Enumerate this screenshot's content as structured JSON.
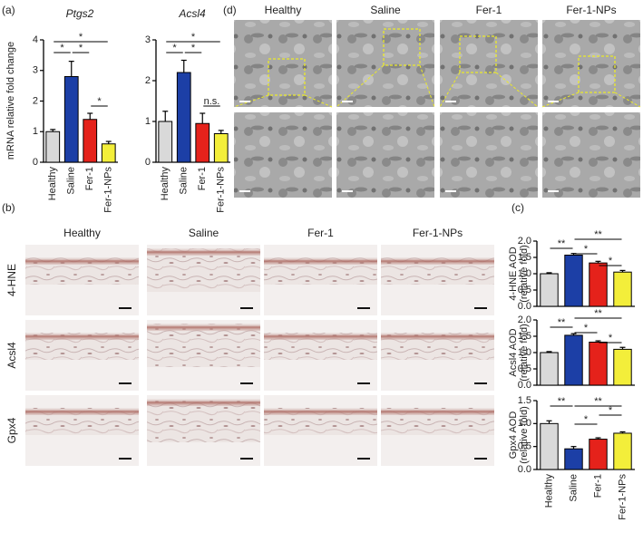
{
  "panel_labels": [
    "(a)",
    "(b)",
    "(c)",
    "(d)"
  ],
  "micrographs_d": {
    "columns": [
      "Healthy",
      "Saline",
      "Fer-1",
      "Fer-1-NPs"
    ]
  },
  "micrographs_b": {
    "columns": [
      "Healthy",
      "Saline",
      "Fer-1",
      "Fer-1-NPs"
    ],
    "rows": [
      "4-HNE",
      "Acsl4",
      "Gpx4"
    ]
  },
  "chart_data": [
    {
      "type": "bar",
      "title": "Ptgs2",
      "ylabel": "mRNA relative fold change",
      "categories": [
        "Healthy",
        "Saline",
        "Fer-1",
        "Fer-1-NPs"
      ],
      "values": [
        1.0,
        2.8,
        1.4,
        0.6
      ],
      "errors": [
        0.07,
        0.5,
        0.2,
        0.08
      ],
      "colors": [
        "#d9d9d9",
        "#1c3fa6",
        "#e5221b",
        "#f3ee3a"
      ],
      "ylim": [
        0,
        4
      ],
      "yticks": [
        0,
        1,
        2,
        3,
        4
      ],
      "annotations": [
        {
          "text": "*",
          "between": [
            0,
            1
          ]
        },
        {
          "text": "*",
          "between": [
            1,
            2
          ]
        },
        {
          "text": "*",
          "between": [
            0,
            3
          ]
        },
        {
          "text": "*",
          "between": [
            2,
            3
          ]
        }
      ]
    },
    {
      "type": "bar",
      "title": "Acsl4",
      "categories": [
        "Healthy",
        "Saline",
        "Fer-1",
        "Fer-1-NPs"
      ],
      "values": [
        1.0,
        2.2,
        0.95,
        0.7
      ],
      "errors": [
        0.25,
        0.3,
        0.25,
        0.08
      ],
      "colors": [
        "#d9d9d9",
        "#1c3fa6",
        "#e5221b",
        "#f3ee3a"
      ],
      "ylim": [
        0,
        3
      ],
      "yticks": [
        0,
        1,
        2,
        3
      ],
      "annotations": [
        {
          "text": "*",
          "between": [
            0,
            1
          ]
        },
        {
          "text": "*",
          "between": [
            1,
            2
          ]
        },
        {
          "text": "*",
          "between": [
            0,
            3
          ]
        },
        {
          "text": "n.s.",
          "between": [
            2,
            3
          ]
        }
      ]
    },
    {
      "type": "bar",
      "ylabel": [
        "4-HNE AOD",
        "(relative fold)"
      ],
      "categories": [
        null,
        null,
        null,
        null
      ],
      "values": [
        1.0,
        1.57,
        1.33,
        1.05
      ],
      "errors": [
        0.03,
        0.05,
        0.05,
        0.05
      ],
      "colors": [
        "#d9d9d9",
        "#1c3fa6",
        "#e5221b",
        "#f3ee3a"
      ],
      "ylim": [
        0,
        2
      ],
      "yticks": [
        {
          "value": 0,
          "label": "0.0"
        },
        0.5,
        {
          "value": 1,
          "label": "1.0"
        },
        1.5,
        {
          "value": 2,
          "label": "2.0"
        }
      ],
      "annotations": [
        {
          "text": "**",
          "between": [
            0,
            1
          ]
        },
        {
          "text": "**",
          "between": [
            1,
            3
          ]
        },
        {
          "text": "*",
          "between": [
            1,
            2
          ]
        },
        {
          "text": "*",
          "between": [
            2,
            3
          ]
        }
      ]
    },
    {
      "type": "bar",
      "ylabel": [
        "Acsl4 AOD",
        "(relative fold)"
      ],
      "categories": [
        null,
        null,
        null,
        null
      ],
      "values": [
        1.0,
        1.53,
        1.32,
        1.1
      ],
      "errors": [
        0.03,
        0.05,
        0.04,
        0.06
      ],
      "colors": [
        "#d9d9d9",
        "#1c3fa6",
        "#e5221b",
        "#f3ee3a"
      ],
      "ylim": [
        0,
        2
      ],
      "yticks": [
        {
          "value": 0,
          "label": "0.0"
        },
        0.5,
        {
          "value": 1,
          "label": "1.0"
        },
        1.5,
        {
          "value": 2,
          "label": "2.0"
        }
      ],
      "annotations": [
        {
          "text": "**",
          "between": [
            0,
            1
          ]
        },
        {
          "text": "**",
          "between": [
            1,
            3
          ]
        },
        {
          "text": "*",
          "between": [
            1,
            2
          ]
        },
        {
          "text": "*",
          "between": [
            2,
            3
          ]
        }
      ]
    },
    {
      "type": "bar",
      "ylabel": [
        "Gpx4 AOD",
        "(relative fold)"
      ],
      "categories": [
        "Healthy",
        "Saline",
        "Fer-1",
        "Fer-1-NPs"
      ],
      "values": [
        1.0,
        0.45,
        0.66,
        0.79
      ],
      "errors": [
        0.06,
        0.05,
        0.03,
        0.03
      ],
      "colors": [
        "#d9d9d9",
        "#1c3fa6",
        "#e5221b",
        "#f3ee3a"
      ],
      "ylim": [
        0,
        1.5
      ],
      "yticks": [
        {
          "value": 0,
          "label": "0.0"
        },
        0.5,
        {
          "value": 1,
          "label": "1.0"
        },
        1.5
      ],
      "annotations": [
        {
          "text": "**",
          "between": [
            0,
            1
          ]
        },
        {
          "text": "**",
          "between": [
            1,
            3
          ]
        },
        {
          "text": "*",
          "between": [
            1,
            2
          ]
        },
        {
          "text": "*",
          "between": [
            2,
            3
          ]
        }
      ]
    }
  ]
}
